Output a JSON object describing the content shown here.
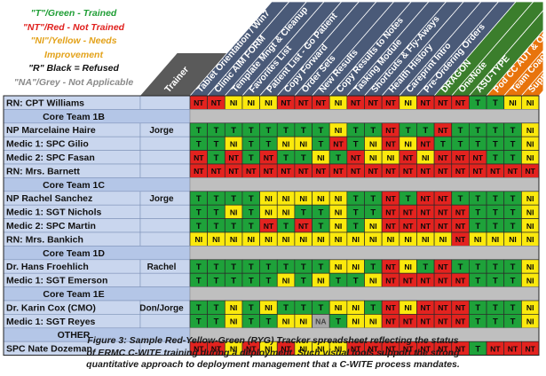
{
  "legend": [
    {
      "text": "\"T\"/Green - Trained",
      "color": "#1f9e35"
    },
    {
      "text": "\"NT\"/Red - Not Trained",
      "color": "#e0201d"
    },
    {
      "text": "\"NI\"/Yellow - Needs",
      "color": "#e3a21a"
    },
    {
      "text": "Improvement",
      "color": "#e3a21a"
    },
    {
      "text": "\"R\" Black = Refused",
      "color": "#111111"
    },
    {
      "text": "\"NA\"/Grey - Not Applicable",
      "color": "#8a8a8a"
    }
  ],
  "trainer_header": "Trainer",
  "columns": [
    "Tablet Orientation / Win7",
    "Clinic AIM FORM",
    "Template Mngt & Cleanup",
    "Favorites List",
    "Patient List - Go Patient",
    "Copy Forward",
    "Order Sets",
    "New Results",
    "Copy Results to Notes",
    "Tasking Module",
    "Shortcuts & Fly-Aways",
    "Health History",
    "Careprint Intro",
    "Pre-Ordering Orders",
    "DRAGON",
    "OneNote",
    "ASU-TYPE",
    "Pod CC AUT & Orders",
    "Team Coach",
    "Support P"
  ],
  "column_colors": [
    "#4a5a78",
    "#4a5a78",
    "#4a5a78",
    "#4a5a78",
    "#4a5a78",
    "#4a5a78",
    "#4a5a78",
    "#4a5a78",
    "#4a5a78",
    "#4a5a78",
    "#4a5a78",
    "#4a5a78",
    "#4a5a78",
    "#4a5a78",
    "#3b7e2c",
    "#3b7e2c",
    "#3b7e2c",
    "#e8740c",
    "#e8740c",
    "#e8740c"
  ],
  "rows": [
    {
      "kind": "person",
      "name": "RN: CPT Williams",
      "trainer": "",
      "cells": [
        "NT",
        "NT",
        "NI",
        "NI",
        "NI",
        "NT",
        "NT",
        "NT",
        "NI",
        "NT",
        "NT",
        "NT",
        "NI",
        "NT",
        "NT",
        "NT",
        "T",
        "T",
        "NI",
        "NI"
      ]
    },
    {
      "kind": "group",
      "name": "Core Team 1B"
    },
    {
      "kind": "person",
      "name": "NP Marcelaine Haire",
      "trainer": "Jorge",
      "cells": [
        "T",
        "T",
        "T",
        "T",
        "T",
        "T",
        "T",
        "T",
        "NI",
        "T",
        "T",
        "NT",
        "T",
        "T",
        "NT",
        "T",
        "T",
        "T",
        "T",
        "NI"
      ]
    },
    {
      "kind": "person",
      "name": "Medic 1: SPC Gilio",
      "trainer": "",
      "cells": [
        "T",
        "T",
        "NI",
        "T",
        "T",
        "NI",
        "NI",
        "T",
        "NT",
        "T",
        "NI",
        "NT",
        "NI",
        "NT",
        "T",
        "T",
        "T",
        "T",
        "T",
        "NI"
      ]
    },
    {
      "kind": "person",
      "name": "Medic 2: SPC Fasan",
      "trainer": "",
      "cells": [
        "NT",
        "T",
        "NT",
        "T",
        "NT",
        "T",
        "T",
        "NI",
        "T",
        "NT",
        "NI",
        "NI",
        "NT",
        "NI",
        "NT",
        "NT",
        "NT",
        "T",
        "T",
        "NI"
      ]
    },
    {
      "kind": "person",
      "name": "RN: Mrs. Barnett",
      "trainer": "",
      "cells": [
        "NT",
        "NT",
        "NT",
        "NT",
        "NT",
        "NT",
        "NT",
        "NT",
        "NT",
        "NT",
        "NT",
        "NT",
        "NT",
        "NT",
        "NT",
        "NT",
        "NT",
        "NT",
        "NT",
        "NT"
      ]
    },
    {
      "kind": "group",
      "name": "Core Team 1C"
    },
    {
      "kind": "person",
      "name": "NP Rachel Sanchez",
      "trainer": "Jorge",
      "cells": [
        "T",
        "T",
        "T",
        "T",
        "NI",
        "NI",
        "NI",
        "NI",
        "NI",
        "T",
        "T",
        "NT",
        "T",
        "NT",
        "NT",
        "T",
        "T",
        "T",
        "T",
        "NI"
      ]
    },
    {
      "kind": "person",
      "name": "Medic 1: SGT Nichols",
      "trainer": "",
      "cells": [
        "T",
        "T",
        "NI",
        "T",
        "NI",
        "NI",
        "T",
        "T",
        "NI",
        "T",
        "T",
        "NT",
        "NT",
        "NT",
        "NT",
        "NT",
        "T",
        "T",
        "T",
        "NI"
      ]
    },
    {
      "kind": "person",
      "name": "Medic 2: SPC Martin",
      "trainer": "",
      "cells": [
        "T",
        "T",
        "T",
        "T",
        "NT",
        "T",
        "NT",
        "T",
        "NI",
        "T",
        "NI",
        "NT",
        "NT",
        "NT",
        "NT",
        "NT",
        "T",
        "T",
        "T",
        "NI"
      ]
    },
    {
      "kind": "person",
      "name": "RN: Mrs. Bankich",
      "trainer": "",
      "cells": [
        "NI",
        "NI",
        "NI",
        "NI",
        "NI",
        "NI",
        "NI",
        "NI",
        "NI",
        "NI",
        "NI",
        "NI",
        "NI",
        "NI",
        "NI",
        "NT",
        "NI",
        "NI",
        "NI",
        "NI"
      ]
    },
    {
      "kind": "group",
      "name": "Core Team 1D"
    },
    {
      "kind": "person",
      "name": "Dr. Hans Froehlich",
      "trainer": "Rachel",
      "cells": [
        "T",
        "T",
        "T",
        "T",
        "T",
        "T",
        "T",
        "T",
        "NI",
        "NI",
        "T",
        "NT",
        "NI",
        "T",
        "NT",
        "T",
        "T",
        "T",
        "T",
        "NI"
      ]
    },
    {
      "kind": "person",
      "name": "Medic 1: SGT Emerson",
      "trainer": "",
      "cells": [
        "T",
        "T",
        "T",
        "T",
        "T",
        "NI",
        "T",
        "NI",
        "T",
        "T",
        "NI",
        "NT",
        "NT",
        "NT",
        "NT",
        "NT",
        "T",
        "T",
        "T",
        "NI"
      ]
    },
    {
      "kind": "group",
      "name": "Core Team 1E"
    },
    {
      "kind": "person",
      "name": "Dr. Karin Cox (CMO)",
      "trainer": "Don/Jorge",
      "cells": [
        "T",
        "T",
        "NI",
        "T",
        "NI",
        "T",
        "T",
        "T",
        "NI",
        "NI",
        "T",
        "NT",
        "NI",
        "NT",
        "NT",
        "NT",
        "T",
        "T",
        "T",
        "NI"
      ]
    },
    {
      "kind": "person",
      "name": "Medic 1: SGT Reyes",
      "trainer": "",
      "cells": [
        "T",
        "T",
        "NI",
        "T",
        "T",
        "NI",
        "NI",
        "NA",
        "T",
        "NI",
        "NI",
        "NT",
        "NT",
        "NT",
        "NT",
        "NT",
        "T",
        "T",
        "T",
        "NI"
      ]
    },
    {
      "kind": "group",
      "name": "OTHER"
    },
    {
      "kind": "person",
      "name": "SPC Nate Dozeman",
      "trainer": "",
      "cells": [
        "NT",
        "NT",
        "NI",
        "NT",
        "NI",
        "NT",
        "NI",
        "NI",
        "NI",
        "NT",
        "NT",
        "NT",
        "NT",
        "NT",
        "NT",
        "NT",
        "T",
        "NT",
        "NT",
        "NT"
      ]
    }
  ],
  "status_colors": {
    "T": "#1ea23a",
    "NT": "#e3231f",
    "NI": "#fbe90d",
    "NA": "#a7a7a7",
    "R": "#111111"
  },
  "status_text_colors": {
    "T": "#0a0a0a",
    "NT": "#0a0a0a",
    "NI": "#0a0a0a",
    "NA": "#444444",
    "R": "#ffffff"
  },
  "caption": [
    "Figure 3: Sample Red-Yellow-Green (RYG) Tracker spreadsheet reflecting the status",
    "of ERMC C-WITE training during a deployment. Such visual tools support the strong",
    "quantitative approach to deployment management that a C-WITE process mandates."
  ]
}
